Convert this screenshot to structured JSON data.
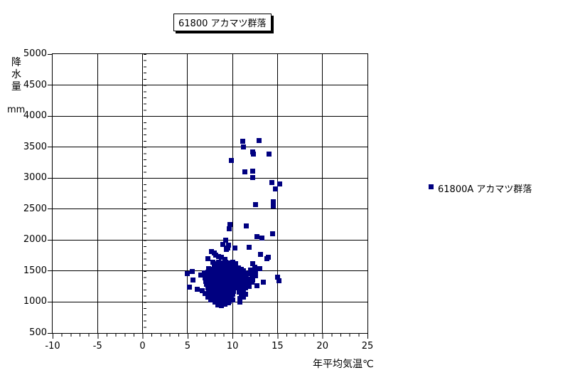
{
  "window": {
    "background": "#ffffff"
  },
  "chart_data": {
    "type": "scatter",
    "title": "61800 アカマツ群落",
    "x_title": "年平均気温℃",
    "y_title": "降水量",
    "y_units": "mm",
    "xlim": [
      -10,
      25
    ],
    "ylim": [
      500,
      5000
    ],
    "x_ticks": [
      -10,
      -5,
      0,
      5,
      10,
      15,
      20,
      25
    ],
    "y_ticks": [
      500,
      1000,
      1500,
      2000,
      2500,
      3000,
      3500,
      4000,
      4500,
      5000
    ],
    "x_minor_step": 1,
    "y_minor_step": 100,
    "grid": true,
    "legend_position": "right",
    "marker_color": "#000080",
    "series": [
      {
        "name": "61800A アカマツ群落",
        "marker": "square",
        "color": "#000080",
        "points": [
          [
            11.1,
            3600
          ],
          [
            12.9,
            3610
          ],
          [
            11.2,
            3510
          ],
          [
            12.2,
            3430
          ],
          [
            12.3,
            3390
          ],
          [
            14.0,
            3390
          ],
          [
            9.8,
            3290
          ],
          [
            12.2,
            3115
          ],
          [
            11.3,
            3105
          ],
          [
            12.2,
            3010
          ],
          [
            14.3,
            2935
          ],
          [
            15.2,
            2915
          ],
          [
            14.7,
            2830
          ],
          [
            12.5,
            2580
          ],
          [
            14.5,
            2620
          ],
          [
            14.5,
            2560
          ],
          [
            9.7,
            2255
          ],
          [
            9.6,
            2185
          ],
          [
            11.5,
            2230
          ],
          [
            12.7,
            2060
          ],
          [
            13.2,
            2040
          ],
          [
            14.4,
            2110
          ],
          [
            11.8,
            1890
          ],
          [
            13.1,
            1775
          ],
          [
            13.9,
            1730
          ],
          [
            13.8,
            1710
          ],
          [
            13.0,
            1550
          ],
          [
            15.0,
            1405
          ],
          [
            15.1,
            1345
          ],
          [
            9.2,
            2000
          ],
          [
            9.5,
            1920
          ],
          [
            9.3,
            1850
          ],
          [
            10.2,
            1880
          ],
          [
            7.6,
            1825
          ],
          [
            8.1,
            1765
          ],
          [
            8.7,
            1725
          ],
          [
            7.2,
            1710
          ],
          [
            9.1,
            1690
          ],
          [
            7.8,
            1650
          ],
          [
            8.9,
            1940
          ],
          [
            9.4,
            1880
          ],
          [
            7.9,
            1795
          ],
          [
            8.4,
            1745
          ],
          [
            4.9,
            1465
          ],
          [
            5.5,
            1500
          ],
          [
            5.6,
            1365
          ],
          [
            5.2,
            1250
          ],
          [
            6.0,
            1215
          ],
          [
            6.4,
            1440
          ],
          [
            6.8,
            1480
          ],
          [
            8.4,
            1650
          ],
          [
            8.8,
            1640
          ],
          [
            9.2,
            1650
          ],
          [
            9.6,
            1640
          ],
          [
            10.0,
            1650
          ],
          [
            10.3,
            1630
          ],
          [
            8.1,
            1620
          ],
          [
            8.6,
            1615
          ],
          [
            9.0,
            1610
          ],
          [
            9.4,
            1605
          ],
          [
            9.9,
            1615
          ],
          [
            10.2,
            1600
          ],
          [
            12.2,
            1620
          ],
          [
            7.9,
            1590
          ],
          [
            8.3,
            1580
          ],
          [
            8.7,
            1590
          ],
          [
            9.1,
            1575
          ],
          [
            9.5,
            1585
          ],
          [
            9.9,
            1570
          ],
          [
            10.3,
            1580
          ],
          [
            10.6,
            1560
          ],
          [
            8.0,
            1555
          ],
          [
            8.5,
            1560
          ],
          [
            9.0,
            1550
          ],
          [
            9.6,
            1555
          ],
          [
            10.1,
            1560
          ],
          [
            10.5,
            1550
          ],
          [
            12.4,
            1570
          ],
          [
            7.3,
            1540
          ],
          [
            7.7,
            1530
          ],
          [
            8.1,
            1540
          ],
          [
            8.5,
            1520
          ],
          [
            8.9,
            1535
          ],
          [
            9.3,
            1525
          ],
          [
            9.7,
            1540
          ],
          [
            10.1,
            1530
          ],
          [
            10.5,
            1520
          ],
          [
            10.9,
            1535
          ],
          [
            11.2,
            1510
          ],
          [
            12.0,
            1520
          ],
          [
            12.5,
            1505
          ],
          [
            7.2,
            1490
          ],
          [
            7.6,
            1470
          ],
          [
            8.0,
            1485
          ],
          [
            8.4,
            1475
          ],
          [
            8.8,
            1490
          ],
          [
            9.2,
            1465
          ],
          [
            9.6,
            1480
          ],
          [
            10.0,
            1470
          ],
          [
            10.4,
            1485
          ],
          [
            10.8,
            1460
          ],
          [
            11.3,
            1475
          ],
          [
            11.9,
            1465
          ],
          [
            12.4,
            1455
          ],
          [
            7.0,
            1430
          ],
          [
            7.4,
            1445
          ],
          [
            7.8,
            1420
          ],
          [
            8.2,
            1435
          ],
          [
            8.6,
            1425
          ],
          [
            9.0,
            1440
          ],
          [
            9.4,
            1415
          ],
          [
            9.8,
            1430
          ],
          [
            10.2,
            1420
          ],
          [
            10.6,
            1435
          ],
          [
            11.0,
            1410
          ],
          [
            11.5,
            1425
          ],
          [
            12.1,
            1415
          ],
          [
            12.5,
            1430
          ],
          [
            6.9,
            1390
          ],
          [
            7.3,
            1375
          ],
          [
            7.7,
            1395
          ],
          [
            8.1,
            1370
          ],
          [
            8.5,
            1385
          ],
          [
            8.9,
            1360
          ],
          [
            9.3,
            1380
          ],
          [
            9.7,
            1365
          ],
          [
            10.1,
            1390
          ],
          [
            10.5,
            1375
          ],
          [
            10.9,
            1360
          ],
          [
            11.3,
            1385
          ],
          [
            11.7,
            1370
          ],
          [
            12.2,
            1360
          ],
          [
            7.0,
            1340
          ],
          [
            7.4,
            1325
          ],
          [
            7.8,
            1345
          ],
          [
            8.2,
            1315
          ],
          [
            8.6,
            1330
          ],
          [
            9.0,
            1320
          ],
          [
            9.4,
            1340
          ],
          [
            9.8,
            1310
          ],
          [
            10.2,
            1330
          ],
          [
            10.6,
            1320
          ],
          [
            11.1,
            1335
          ],
          [
            11.6,
            1310
          ],
          [
            12.1,
            1330
          ],
          [
            12.7,
            1270
          ],
          [
            13.4,
            1325
          ],
          [
            7.1,
            1290
          ],
          [
            7.5,
            1275
          ],
          [
            7.9,
            1295
          ],
          [
            8.3,
            1265
          ],
          [
            8.7,
            1280
          ],
          [
            9.1,
            1270
          ],
          [
            9.5,
            1290
          ],
          [
            9.9,
            1260
          ],
          [
            10.3,
            1280
          ],
          [
            10.8,
            1265
          ],
          [
            11.3,
            1285
          ],
          [
            11.8,
            1260
          ],
          [
            7.2,
            1240
          ],
          [
            7.6,
            1225
          ],
          [
            8.0,
            1245
          ],
          [
            8.4,
            1215
          ],
          [
            8.8,
            1230
          ],
          [
            9.2,
            1220
          ],
          [
            9.6,
            1240
          ],
          [
            10.0,
            1210
          ],
          [
            10.4,
            1230
          ],
          [
            10.9,
            1215
          ],
          [
            11.4,
            1235
          ],
          [
            6.6,
            1190
          ],
          [
            7.3,
            1175
          ],
          [
            7.7,
            1195
          ],
          [
            8.1,
            1165
          ],
          [
            8.5,
            1180
          ],
          [
            8.9,
            1170
          ],
          [
            9.3,
            1190
          ],
          [
            9.7,
            1160
          ],
          [
            10.1,
            1180
          ],
          [
            10.7,
            1165
          ],
          [
            11.2,
            1185
          ],
          [
            6.9,
            1140
          ],
          [
            7.4,
            1125
          ],
          [
            7.8,
            1145
          ],
          [
            8.2,
            1115
          ],
          [
            8.6,
            1130
          ],
          [
            9.0,
            1120
          ],
          [
            9.4,
            1140
          ],
          [
            9.8,
            1110
          ],
          [
            10.0,
            1135
          ],
          [
            10.9,
            1115
          ],
          [
            11.4,
            1130
          ],
          [
            7.2,
            1090
          ],
          [
            7.7,
            1075
          ],
          [
            8.1,
            1095
          ],
          [
            8.5,
            1065
          ],
          [
            8.9,
            1080
          ],
          [
            9.3,
            1070
          ],
          [
            9.8,
            1090
          ],
          [
            10.8,
            1060
          ],
          [
            11.2,
            1085
          ],
          [
            7.5,
            1040
          ],
          [
            8.0,
            1025
          ],
          [
            8.4,
            1045
          ],
          [
            8.8,
            1015
          ],
          [
            9.2,
            1030
          ],
          [
            9.6,
            1020
          ],
          [
            10.0,
            1040
          ],
          [
            10.8,
            1005
          ],
          [
            8.0,
            1000
          ],
          [
            8.3,
            960
          ],
          [
            8.7,
            950
          ],
          [
            9.1,
            970
          ],
          [
            9.5,
            990
          ]
        ]
      }
    ]
  },
  "legend": {
    "entries": [
      {
        "label": "61800A アカマツ群落",
        "color": "#000080"
      }
    ]
  }
}
